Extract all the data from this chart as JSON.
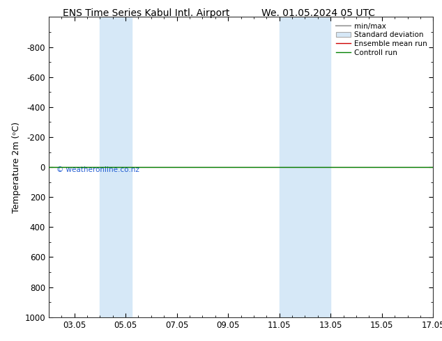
{
  "title_left": "ENS Time Series Kabul Intl. Airport",
  "title_right": "We. 01.05.2024 05 UTC",
  "ylabel": "Temperature 2m (ᵒC)",
  "xlim": [
    2.05,
    17.05
  ],
  "ylim": [
    1000,
    -1000
  ],
  "yticks": [
    -800,
    -600,
    -400,
    -200,
    0,
    200,
    400,
    600,
    800,
    1000
  ],
  "xticks": [
    3.05,
    5.05,
    7.05,
    9.05,
    11.05,
    13.05,
    15.05,
    17.05
  ],
  "xticklabels": [
    "03.05",
    "05.05",
    "07.05",
    "09.05",
    "11.05",
    "13.05",
    "15.05",
    "17.05"
  ],
  "shaded_bands": [
    [
      4.05,
      5.05
    ],
    [
      5.05,
      5.3
    ],
    [
      11.05,
      12.05
    ],
    [
      12.05,
      13.05
    ]
  ],
  "control_run_y": 0,
  "watermark": "© weatheronline.co.nz",
  "legend_labels": [
    "min/max",
    "Standard deviation",
    "Ensemble mean run",
    "Controll run"
  ],
  "bg_color": "#ffffff",
  "shaded_color": "#d6e8f7",
  "shaded_alpha": 1.0,
  "title_fontsize": 10,
  "axis_label_fontsize": 9,
  "tick_fontsize": 8.5
}
